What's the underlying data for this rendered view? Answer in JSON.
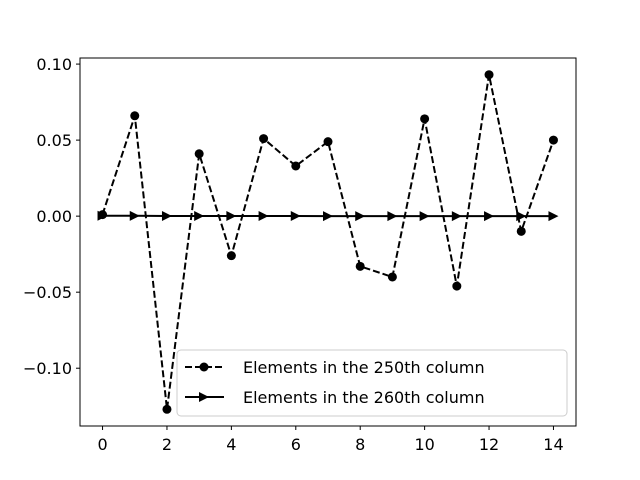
{
  "chart_data": {
    "type": "line",
    "x": [
      0,
      1,
      2,
      3,
      4,
      5,
      6,
      7,
      8,
      9,
      10,
      11,
      12,
      13,
      14
    ],
    "series": [
      {
        "name": "Elements in the 250th column",
        "values": [
          0.001,
          0.066,
          -0.127,
          0.041,
          -0.026,
          0.051,
          0.033,
          0.049,
          -0.033,
          -0.04,
          0.064,
          -0.046,
          0.093,
          -0.01,
          0.05
        ],
        "style": "dashed",
        "marker": "circle",
        "color": "#000000"
      },
      {
        "name": "Elements in the 260th column",
        "values": [
          0.0003,
          0.0002,
          0.0001,
          0.0001,
          0.0001,
          0.0001,
          0.0001,
          0.0,
          0.0,
          0.0,
          0.0,
          0.0,
          0.0,
          0.0,
          0.0
        ],
        "style": "solid",
        "marker": "triangle-right",
        "color": "#000000"
      }
    ],
    "xticks": [
      "0",
      "2",
      "4",
      "6",
      "8",
      "10",
      "12",
      "14"
    ],
    "yticks": [
      "−0.10",
      "−0.05",
      "0.00",
      "0.05",
      "0.10"
    ],
    "xlim": [
      -0.7,
      14.7
    ],
    "ylim": [
      -0.138,
      0.104
    ],
    "grid": false,
    "legend_position": "lower-right",
    "title": "",
    "xlabel": "",
    "ylabel": ""
  }
}
